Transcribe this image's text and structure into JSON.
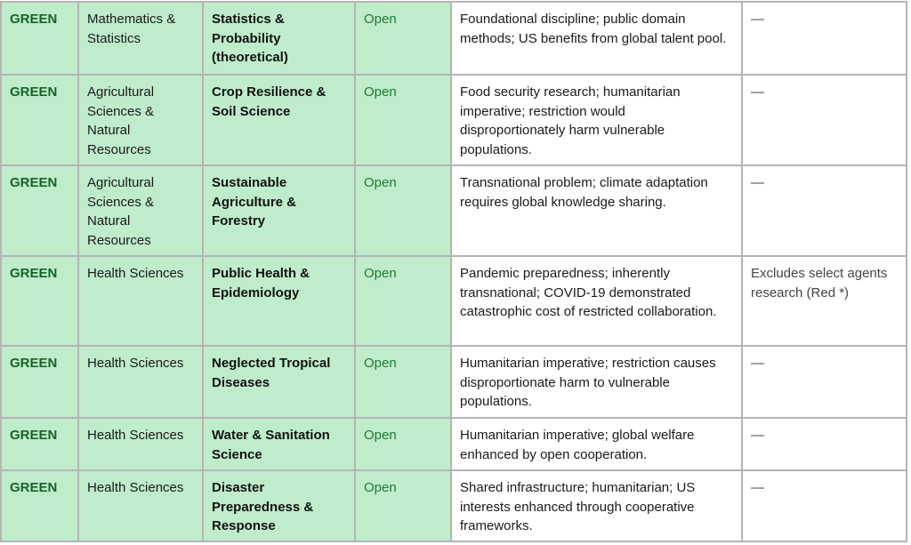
{
  "colors": {
    "green_cell_bg": "#bfeccb",
    "level_text": "#16632a",
    "status_text": "#1f7a30",
    "border": "#b4b4b4"
  },
  "rows": [
    {
      "level": "GREEN",
      "field": "Mathematics & Statistics",
      "subfield": "Statistics & Probability (theoretical)",
      "status": "Open",
      "rationale": "Foundational discipline; public domain methods; US benefits from global talent pool.",
      "notes": "—"
    },
    {
      "level": "GREEN",
      "field": "Agricultural Sciences & Natural Resources",
      "subfield": "Crop Resilience & Soil Science",
      "status": "Open",
      "rationale": "Food security research; humanitarian imperative; restriction would disproportionately harm vulnerable populations.",
      "notes": "—"
    },
    {
      "level": "GREEN",
      "field": "Agricultural Sciences & Natural Resources",
      "subfield": "Sustainable Agriculture & Forestry",
      "status": "Open",
      "rationale": "Transnational problem; climate adaptation requires global knowledge sharing.",
      "notes": "—"
    },
    {
      "level": "GREEN",
      "field": "Health Sciences",
      "subfield": "Public Health & Epidemiology",
      "status": "Open",
      "rationale": "Pandemic preparedness; inherently transnational; COVID-19 demonstrated catastrophic cost of restricted collaboration.",
      "notes": "Excludes select agents research (Red *)"
    },
    {
      "level": "GREEN",
      "field": "Health Sciences",
      "subfield": "Neglected Tropical Diseases",
      "status": "Open",
      "rationale": "Humanitarian imperative; restriction causes disproportionate harm to vulnerable populations.",
      "notes": "—"
    },
    {
      "level": "GREEN",
      "field": "Health Sciences",
      "subfield": "Water & Sanitation Science",
      "status": "Open",
      "rationale": "Humanitarian imperative; global welfare enhanced by open cooperation.",
      "notes": "—"
    },
    {
      "level": "GREEN",
      "field": "Health Sciences",
      "subfield": "Disaster Preparedness & Response",
      "status": "Open",
      "rationale": "Shared infrastructure; humanitarian; US interests enhanced through cooperative frameworks.",
      "notes": "—"
    }
  ]
}
